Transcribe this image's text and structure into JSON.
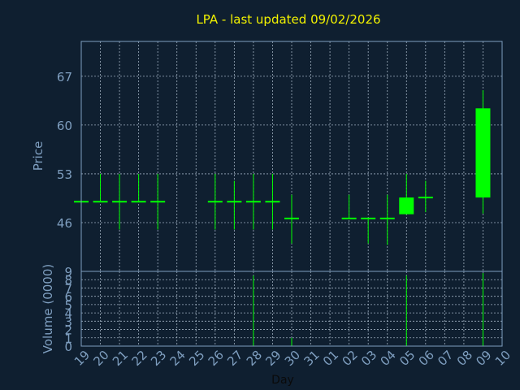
{
  "chart_data": [
    {
      "type": "candlestick",
      "title": "LPA -  last updated 09/02/2026",
      "ylabel": "Price",
      "ylim": [
        39,
        72
      ],
      "yticks": [
        46,
        53,
        60,
        67
      ],
      "categories": [
        "19",
        "20",
        "21",
        "22",
        "23",
        "24",
        "25",
        "26",
        "27",
        "28",
        "29",
        "30",
        "31",
        "01",
        "02",
        "03",
        "04",
        "05",
        "06",
        "07",
        "08",
        "09",
        "10"
      ],
      "candles": [
        {
          "x": "19",
          "open": 49.0,
          "high": 49.0,
          "low": 49.0,
          "close": 49.0
        },
        {
          "x": "20",
          "open": 49.0,
          "high": 53.0,
          "low": 49.0,
          "close": 49.0
        },
        {
          "x": "21",
          "open": 49.0,
          "high": 53.0,
          "low": 45.0,
          "close": 49.0
        },
        {
          "x": "22",
          "open": 49.0,
          "high": 53.0,
          "low": 49.0,
          "close": 49.0
        },
        {
          "x": "23",
          "open": 49.0,
          "high": 53.0,
          "low": 45.0,
          "close": 49.0
        },
        {
          "x": "26",
          "open": 49.0,
          "high": 53.0,
          "low": 45.0,
          "close": 49.0
        },
        {
          "x": "27",
          "open": 49.0,
          "high": 52.0,
          "low": 45.0,
          "close": 49.0
        },
        {
          "x": "28",
          "open": 49.0,
          "high": 53.0,
          "low": 45.0,
          "close": 49.0
        },
        {
          "x": "29",
          "open": 49.0,
          "high": 53.0,
          "low": 45.0,
          "close": 49.0
        },
        {
          "x": "30",
          "open": 46.6,
          "high": 50.0,
          "low": 43.0,
          "close": 46.6
        },
        {
          "x": "02",
          "open": 46.6,
          "high": 50.0,
          "low": 46.6,
          "close": 46.6
        },
        {
          "x": "03",
          "open": 46.6,
          "high": 46.6,
          "low": 43.0,
          "close": 46.6
        },
        {
          "x": "04",
          "open": 46.6,
          "high": 50.0,
          "low": 42.8,
          "close": 46.6
        },
        {
          "x": "05",
          "open": 47.2,
          "high": 53.0,
          "low": 47.2,
          "close": 49.6
        },
        {
          "x": "06",
          "open": 49.6,
          "high": 52.0,
          "low": 47.5,
          "close": 49.6
        },
        {
          "x": "09",
          "open": 49.6,
          "high": 65.0,
          "low": 47.3,
          "close": 62.4
        }
      ]
    },
    {
      "type": "bar",
      "ylabel": "Volume (0000)",
      "xlabel": "Day",
      "ylim": [
        0,
        9
      ],
      "yticks": [
        0,
        1,
        2,
        3,
        4,
        5,
        6,
        7,
        8,
        9
      ],
      "categories": [
        "19",
        "20",
        "21",
        "22",
        "23",
        "24",
        "25",
        "26",
        "27",
        "28",
        "29",
        "30",
        "31",
        "01",
        "02",
        "03",
        "04",
        "05",
        "06",
        "07",
        "08",
        "09",
        "10"
      ],
      "values": [
        0,
        0,
        0,
        0,
        0,
        0,
        0,
        0,
        0,
        8.5,
        0,
        1.0,
        0,
        0,
        0,
        0,
        0,
        8.5,
        0,
        0,
        0,
        8.8,
        0
      ]
    }
  ],
  "colors": {
    "background": "#0f1f30",
    "axis": "#7f9fc0",
    "grid": "#b8c8d8",
    "candle": "#00ff00",
    "title": "#f2f200"
  }
}
